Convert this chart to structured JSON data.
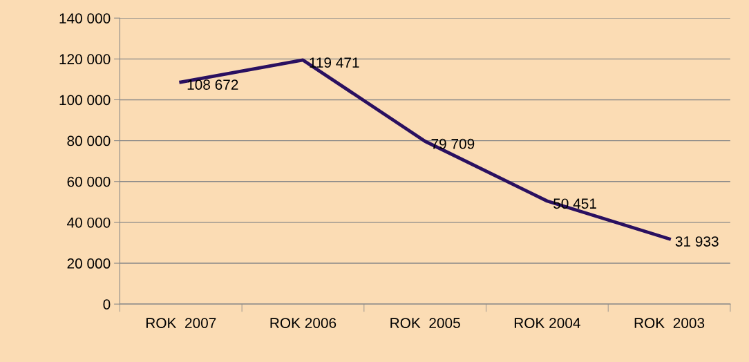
{
  "chart_data": {
    "type": "line",
    "categories": [
      "ROK  2007",
      "ROK 2006",
      "ROK  2005",
      "ROK 2004",
      "ROK  2003"
    ],
    "series": [
      {
        "color": "#2a1060",
        "values": [
          108672,
          119471,
          79709,
          50451,
          31933
        ],
        "value_labels": [
          "108 672",
          "119 471",
          "79 709",
          "50 451",
          "31 933"
        ]
      }
    ],
    "ylim": [
      0,
      140000
    ],
    "yticks": [
      {
        "value": 0,
        "label": "0"
      },
      {
        "value": 20000,
        "label": "20 000"
      },
      {
        "value": 40000,
        "label": "40 000"
      },
      {
        "value": 60000,
        "label": "60 000"
      },
      {
        "value": 80000,
        "label": "80 000"
      },
      {
        "value": 100000,
        "label": "100 000"
      },
      {
        "value": 120000,
        "label": "120 000"
      },
      {
        "value": 140000,
        "label": "140 000"
      }
    ],
    "grid": "y",
    "legend": false,
    "marker": "none",
    "line_style": "solid"
  }
}
